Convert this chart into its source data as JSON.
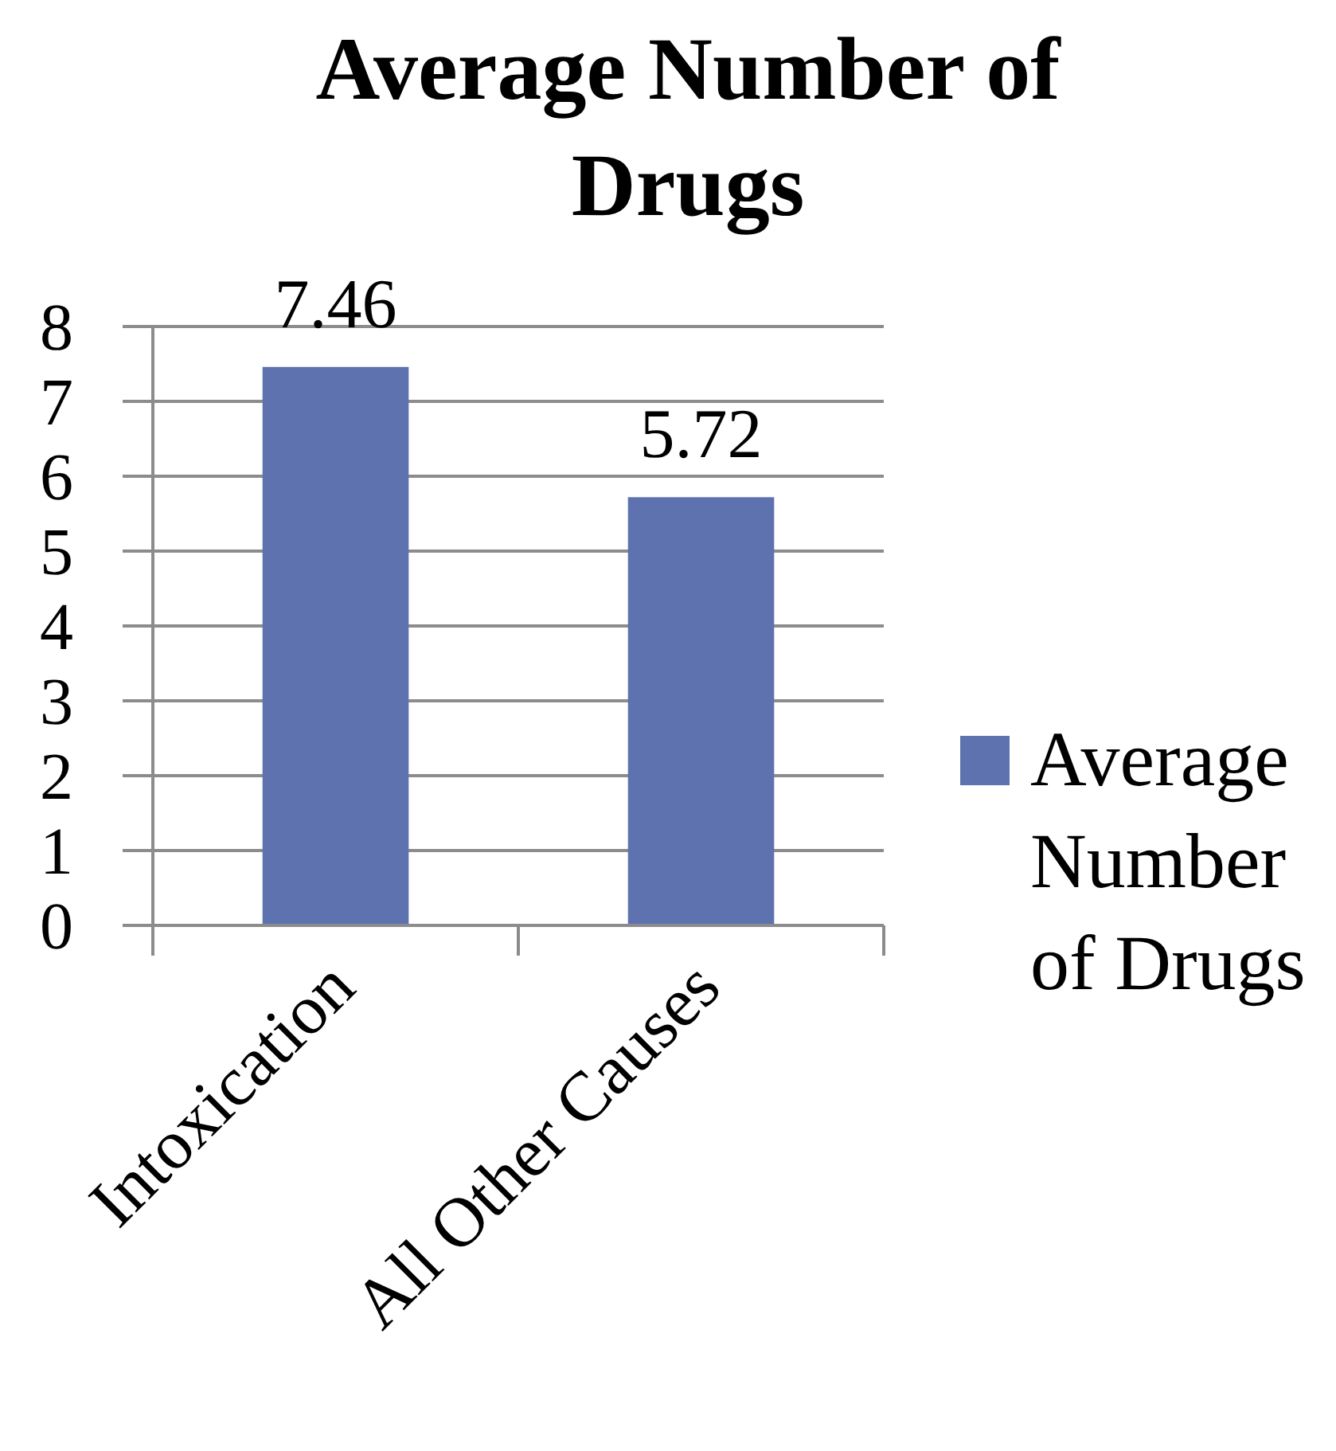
{
  "chart_data": {
    "type": "bar",
    "title": "Average Number of Drugs",
    "categories": [
      "Intoxication",
      "All Other Causes"
    ],
    "series": [
      {
        "name": "Average Number of Drugs",
        "color": "#5e72b0",
        "values": [
          7.46,
          5.72
        ]
      }
    ],
    "ylim": [
      0,
      8
    ],
    "yticks": [
      0,
      1,
      2,
      3,
      4,
      5,
      6,
      7,
      8
    ],
    "grid": "y",
    "legend": "right",
    "data_labels": true
  }
}
